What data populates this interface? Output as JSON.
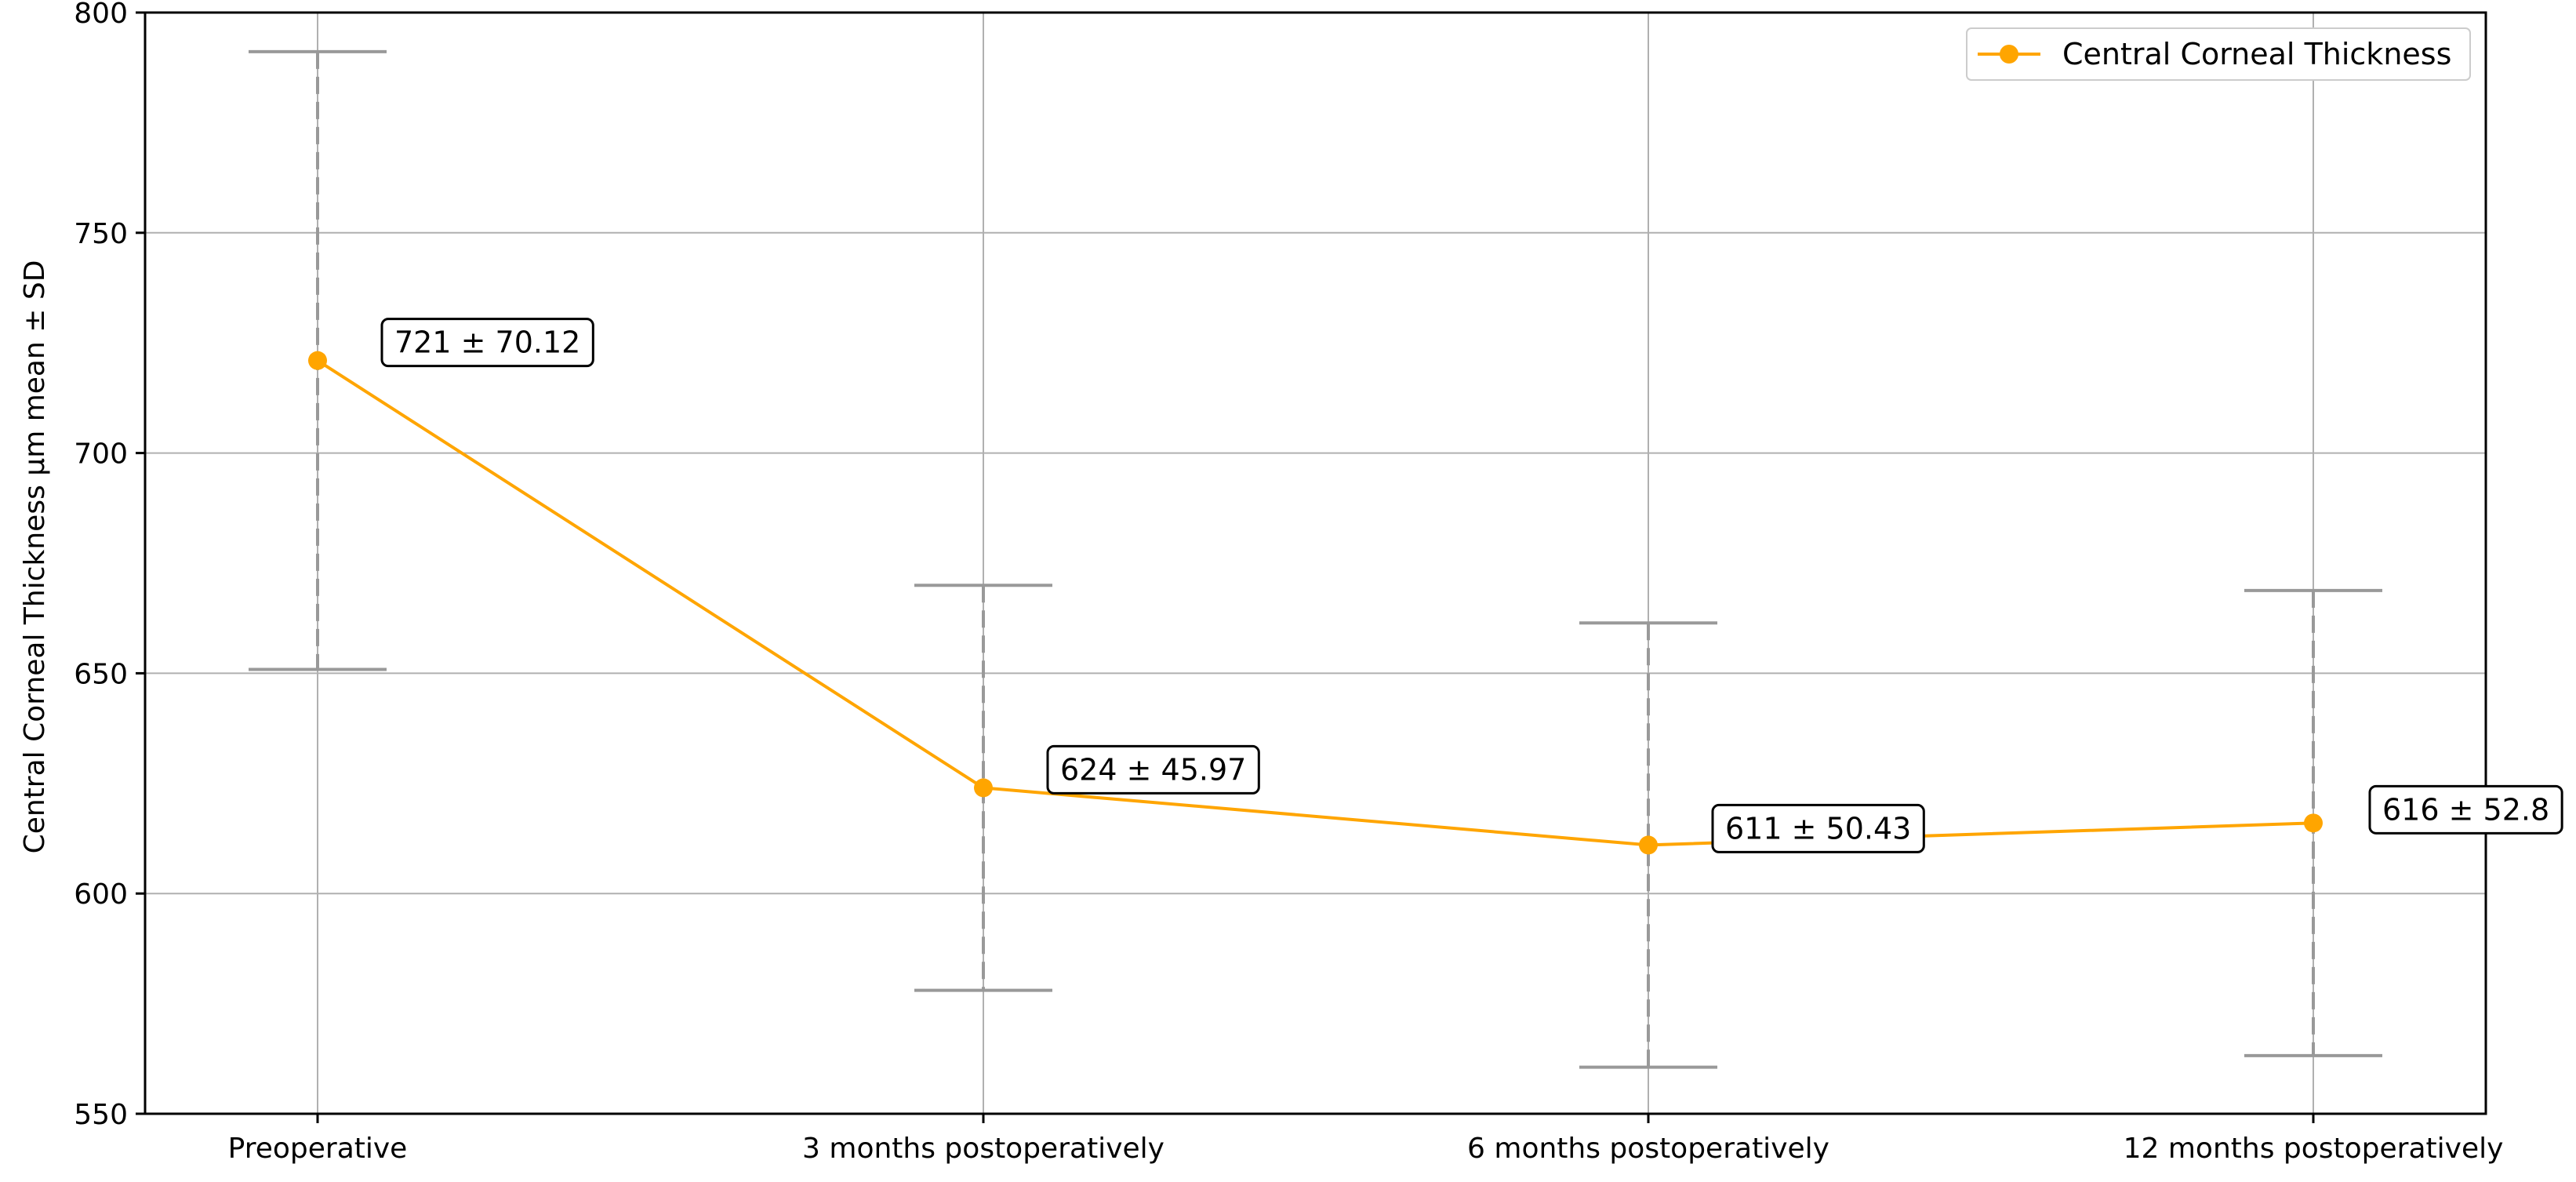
{
  "chart_data": {
    "type": "line",
    "categories": [
      "Preoperative",
      "3 months postoperatively",
      "6 months postoperatively",
      "12 months postoperatively"
    ],
    "series": [
      {
        "name": "Central Corneal Thickness",
        "values": [
          721,
          624,
          611,
          616
        ],
        "sd": [
          70.12,
          45.97,
          50.43,
          52.8
        ],
        "color": "#FFA500",
        "marker": "circle"
      }
    ],
    "data_labels": [
      "721 ± 70.12",
      "624 ± 45.97",
      "611 ± 50.43",
      "616 ± 52.8"
    ],
    "error_bars": {
      "color": "#999999",
      "style": "dashed"
    },
    "title": "",
    "xlabel": "",
    "ylabel": "Central Corneal Thickness µm mean ± SD",
    "ylim": [
      550,
      800
    ],
    "yticks": [
      550,
      600,
      650,
      700,
      750,
      800
    ],
    "grid": true,
    "legend_position": "top-right"
  }
}
